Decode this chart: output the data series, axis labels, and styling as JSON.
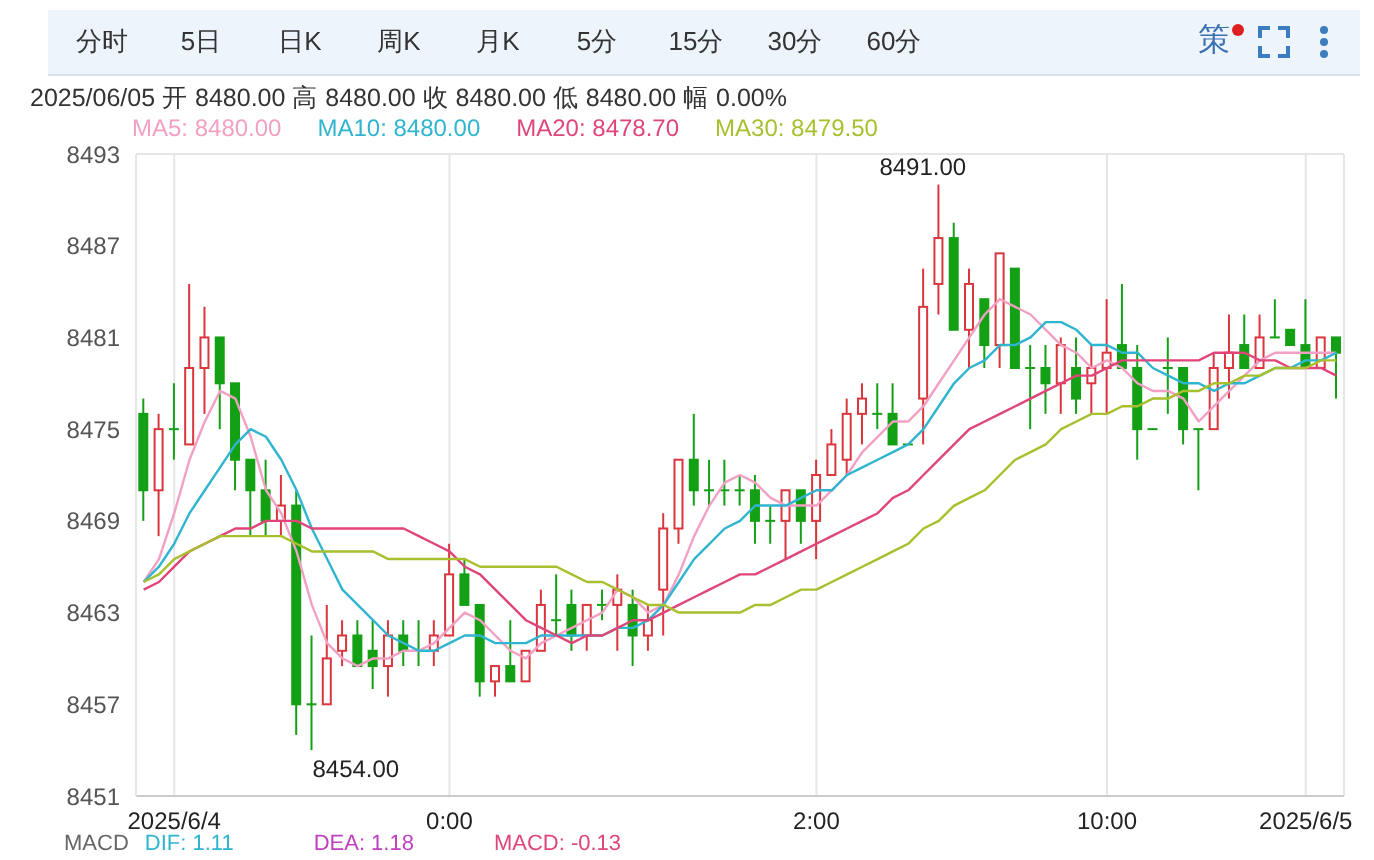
{
  "chart_data": {
    "type": "candlestick",
    "subtitle": "2025/06/05 开 8480.00 高 8480.00 收 8480.00 低 8480.00 幅 0.00%",
    "categories": [
      null,
      null,
      "2025/6/4",
      null,
      null,
      null,
      null,
      null,
      null,
      null,
      null,
      null,
      null,
      null,
      null,
      null,
      null,
      null,
      null,
      null,
      "0:00",
      null,
      null,
      null,
      null,
      null,
      null,
      null,
      null,
      null,
      null,
      null,
      null,
      null,
      null,
      null,
      null,
      null,
      null,
      null,
      null,
      null,
      null,
      null,
      "2:00",
      null,
      null,
      null,
      null,
      null,
      null,
      null,
      null,
      null,
      null,
      null,
      null,
      null,
      null,
      null,
      null,
      null,
      null,
      "10:00",
      null,
      null,
      null,
      null,
      null,
      null,
      null,
      null,
      null,
      null,
      null,
      null,
      "2025/6/5",
      null,
      null
    ],
    "ohlc": [
      [
        8476,
        8477,
        8469,
        8471
      ],
      [
        8471,
        8476,
        8468,
        8475
      ],
      [
        8475,
        8478,
        8473,
        8475
      ],
      [
        8474,
        8484.5,
        8474,
        8479
      ],
      [
        8479,
        8483,
        8476,
        8481
      ],
      [
        8481,
        8481,
        8475,
        8478
      ],
      [
        8478,
        8478,
        8471,
        8473
      ],
      [
        8473,
        8473,
        8468,
        8471
      ],
      [
        8471,
        8473,
        8468,
        8469
      ],
      [
        8469,
        8472,
        8468,
        8470
      ],
      [
        8470,
        8471,
        8455,
        8457
      ],
      [
        8457,
        8461.5,
        8454,
        8457
      ],
      [
        8457,
        8463.5,
        8457,
        8460
      ],
      [
        8460.5,
        8462.5,
        8459.5,
        8461.5
      ],
      [
        8461.5,
        8462.5,
        8459.5,
        8459.5
      ],
      [
        8460.5,
        8462.5,
        8458,
        8459.5
      ],
      [
        8459.5,
        8462.5,
        8457.5,
        8461.5
      ],
      [
        8461.5,
        8462.5,
        8459.5,
        8460.5
      ],
      [
        8460.5,
        8462.5,
        8459.5,
        8460.5
      ],
      [
        8460.5,
        8462.5,
        8459.5,
        8461.5
      ],
      [
        8461.5,
        8467.5,
        8461.5,
        8465.5
      ],
      [
        8465.5,
        8466.5,
        8463.5,
        8463.5
      ],
      [
        8463.5,
        8463.5,
        8457.5,
        8458.5
      ],
      [
        8458.5,
        8459.5,
        8457.5,
        8459.5
      ],
      [
        8459.5,
        8462.5,
        8458.5,
        8458.5
      ],
      [
        8458.5,
        8460.5,
        8458.5,
        8460.5
      ],
      [
        8460.5,
        8464.5,
        8460.5,
        8463.5
      ],
      [
        8462.5,
        8465.5,
        8461.5,
        8462.5
      ],
      [
        8463.5,
        8464.5,
        8460.5,
        8461.5
      ],
      [
        8461.5,
        8463.5,
        8460.5,
        8463.5
      ],
      [
        8463.5,
        8464.5,
        8462.5,
        8463.5
      ],
      [
        8463.5,
        8465.5,
        8460.5,
        8464.5
      ],
      [
        8463.5,
        8464.5,
        8459.5,
        8461.5
      ],
      [
        8461.5,
        8463.5,
        8460.5,
        8462.5
      ],
      [
        8464.5,
        8469.5,
        8461.5,
        8468.5
      ],
      [
        8468.5,
        8473,
        8467.5,
        8473
      ],
      [
        8473,
        8476,
        8470,
        8471
      ],
      [
        8471,
        8473,
        8470,
        8471
      ],
      [
        8471,
        8473,
        8470,
        8471
      ],
      [
        8471,
        8472,
        8470,
        8471
      ],
      [
        8471,
        8472,
        8467.5,
        8469
      ],
      [
        8469,
        8470,
        8467.5,
        8469
      ],
      [
        8469,
        8471,
        8466.5,
        8471
      ],
      [
        8471,
        8471,
        8467.5,
        8469
      ],
      [
        8469,
        8473,
        8466.5,
        8472
      ],
      [
        8472,
        8475,
        8472,
        8474
      ],
      [
        8473,
        8477,
        8472,
        8476
      ],
      [
        8476,
        8478,
        8474,
        8477
      ],
      [
        8476,
        8478,
        8475,
        8476
      ],
      [
        8476,
        8478,
        8474,
        8474
      ],
      [
        8474,
        8474,
        8474,
        8474
      ],
      [
        8477,
        8485.5,
        8474,
        8483
      ],
      [
        8484.5,
        8491,
        8482.5,
        8487.5
      ],
      [
        8487.5,
        8488.5,
        8481.5,
        8481.5
      ],
      [
        8481.5,
        8485.5,
        8479,
        8484.5
      ],
      [
        8483.5,
        8483.5,
        8479,
        8480.5
      ],
      [
        8480.5,
        8486.5,
        8479,
        8486.5
      ],
      [
        8485.5,
        8485.5,
        8479,
        8479
      ],
      [
        8479,
        8480.5,
        8475,
        8479
      ],
      [
        8479,
        8480.5,
        8476,
        8478
      ],
      [
        8478,
        8481,
        8476,
        8480.5
      ],
      [
        8479,
        8481,
        8476,
        8477
      ],
      [
        8478,
        8480.5,
        8476,
        8479
      ],
      [
        8479,
        8483.5,
        8476,
        8480
      ],
      [
        8480.5,
        8484.5,
        8479,
        8479
      ],
      [
        8479,
        8480.5,
        8473,
        8475
      ],
      [
        8475,
        8475,
        8475,
        8475
      ],
      [
        8479,
        8481,
        8476,
        8479
      ],
      [
        8479,
        8479,
        8474,
        8475
      ],
      [
        8475,
        8475,
        8471,
        8475
      ],
      [
        8475,
        8480,
        8475,
        8479
      ],
      [
        8479,
        8482.5,
        8477,
        8480
      ],
      [
        8480.5,
        8482.5,
        8479,
        8479
      ],
      [
        8479,
        8482.5,
        8479,
        8481
      ],
      [
        8481,
        8483.5,
        8481,
        8481
      ],
      [
        8481.5,
        8481.5,
        8480.5,
        8480.5
      ],
      [
        8480.5,
        8483.5,
        8479,
        8479
      ],
      [
        8479,
        8481,
        8479,
        8481
      ],
      [
        8481,
        8481,
        8477,
        8480
      ]
    ],
    "colors": [
      "#14a014",
      "#d9363e",
      "#14a014",
      "#d9363e",
      "#d9363e",
      "#14a014",
      "#14a014",
      "#14a014",
      "#14a014",
      "#d9363e",
      "#14a014",
      "#14a014",
      "#d9363e",
      "#d9363e",
      "#14a014",
      "#14a014",
      "#d9363e",
      "#14a014",
      "#14a014",
      "#d9363e",
      "#d9363e",
      "#14a014",
      "#14a014",
      "#d9363e",
      "#14a014",
      "#d9363e",
      "#d9363e",
      "#14a014",
      "#14a014",
      "#d9363e",
      "#14a014",
      "#d9363e",
      "#14a014",
      "#d9363e",
      "#d9363e",
      "#d9363e",
      "#14a014",
      "#14a014",
      "#14a014",
      "#14a014",
      "#14a014",
      "#14a014",
      "#d9363e",
      "#14a014",
      "#d9363e",
      "#d9363e",
      "#d9363e",
      "#d9363e",
      "#14a014",
      "#14a014",
      "#14a014",
      "#d9363e",
      "#d9363e",
      "#14a014",
      "#d9363e",
      "#14a014",
      "#d9363e",
      "#14a014",
      "#14a014",
      "#14a014",
      "#d9363e",
      "#14a014",
      "#d9363e",
      "#d9363e",
      "#14a014",
      "#14a014",
      "#14a014",
      "#14a014",
      "#14a014",
      "#14a014",
      "#d9363e",
      "#d9363e",
      "#14a014",
      "#d9363e",
      "#14a014",
      "#14a014",
      "#14a014",
      "#d9363e",
      "#14a014"
    ],
    "series": [
      {
        "type": "line",
        "name": "MA5: 8480.00",
        "color": "#f2a0c4",
        "values": [
          8465,
          8466.5,
          8469.5,
          8473,
          8475.5,
          8477.5,
          8477,
          8474.5,
          8471,
          8469.5,
          8467,
          8463.5,
          8461,
          8460,
          8459.5,
          8460,
          8460,
          8460.5,
          8460.5,
          8461,
          8462,
          8463,
          8462.5,
          8461.5,
          8460.5,
          8460,
          8461,
          8461.5,
          8462,
          8462.5,
          8463,
          8464.5,
          8464,
          8463,
          8463.5,
          8465.5,
          8468,
          8470,
          8471.5,
          8472,
          8471.5,
          8470.5,
          8470,
          8470,
          8470,
          8471,
          8472,
          8473.5,
          8474.5,
          8475.5,
          8475.5,
          8476.5,
          8478,
          8479.5,
          8481,
          8482.5,
          8483.5,
          8483,
          8482.5,
          8481.5,
          8480.5,
          8480,
          8479,
          8479.5,
          8479,
          8478,
          8477.5,
          8477.5,
          8477,
          8475.5,
          8476.5,
          8477.5,
          8478.5,
          8479.5,
          8480,
          8480,
          8480,
          8480,
          8480
        ]
      },
      {
        "type": "line",
        "name": "MA10: 8480.00",
        "color": "#2fb5cf",
        "values": [
          8465,
          8466,
          8467.5,
          8469.5,
          8471,
          8472.5,
          8474,
          8475,
          8474.5,
          8473,
          8471,
          8468.5,
          8466.5,
          8464.5,
          8463.5,
          8462.5,
          8461.5,
          8461,
          8460.5,
          8460.5,
          8461,
          8461.5,
          8461.5,
          8461,
          8461,
          8461,
          8461.5,
          8461.5,
          8461.5,
          8461.5,
          8461.5,
          8462,
          8462,
          8462.5,
          8463.5,
          8465,
          8466.5,
          8467.5,
          8468.5,
          8469,
          8470,
          8470,
          8470,
          8470.5,
          8471,
          8471,
          8472,
          8472.5,
          8473,
          8473.5,
          8474,
          8475,
          8476.5,
          8478,
          8479,
          8479.5,
          8480.5,
          8480.5,
          8481,
          8482,
          8482,
          8481.5,
          8480.5,
          8480.5,
          8480,
          8480,
          8479,
          8478.5,
          8478,
          8478,
          8477.5,
          8478,
          8478,
          8478.5,
          8479,
          8479,
          8479.5,
          8479.5,
          8480
        ]
      },
      {
        "type": "line",
        "name": "MA20: 8478.70",
        "color": "#e0457a",
        "values": [
          8464.5,
          8465,
          8466,
          8467,
          8467.5,
          8468,
          8468.5,
          8468.5,
          8469,
          8469,
          8469,
          8468.5,
          8468.5,
          8468.5,
          8468.5,
          8468.5,
          8468.5,
          8468.5,
          8468,
          8467.5,
          8467,
          8466,
          8465.5,
          8464.5,
          8463.5,
          8462.5,
          8462,
          8461.5,
          8461,
          8461.5,
          8461.5,
          8462,
          8462.5,
          8462.5,
          8463,
          8463.5,
          8464,
          8464.5,
          8465,
          8465.5,
          8465.5,
          8466,
          8466.5,
          8467,
          8467.5,
          8468,
          8468.5,
          8469,
          8469.5,
          8470.5,
          8471,
          8472,
          8473,
          8474,
          8475,
          8475.5,
          8476,
          8476.5,
          8477,
          8477.5,
          8478,
          8478.5,
          8478.5,
          8479,
          8479.5,
          8479.5,
          8479.5,
          8479.5,
          8479.5,
          8479.5,
          8480,
          8480,
          8480,
          8479.5,
          8479.5,
          8479,
          8479,
          8479,
          8478.5
        ]
      },
      {
        "type": "line",
        "name": "MA30: 8479.50",
        "color": "#a8bf2e",
        "values": [
          8465,
          8465.5,
          8466.5,
          8467,
          8467.5,
          8468,
          8468,
          8468,
          8468,
          8468,
          8467.5,
          8467,
          8467,
          8467,
          8467,
          8467,
          8466.5,
          8466.5,
          8466.5,
          8466.5,
          8466.5,
          8466.5,
          8466,
          8466,
          8466,
          8466,
          8466,
          8466,
          8465.5,
          8465,
          8465,
          8464.5,
          8464,
          8463.5,
          8463.5,
          8463,
          8463,
          8463,
          8463,
          8463,
          8463.5,
          8463.5,
          8464,
          8464.5,
          8464.5,
          8465,
          8465.5,
          8466,
          8466.5,
          8467,
          8467.5,
          8468.5,
          8469,
          8470,
          8470.5,
          8471,
          8472,
          8473,
          8473.5,
          8474,
          8475,
          8475.5,
          8476,
          8476,
          8476.5,
          8476.5,
          8477,
          8477,
          8477.5,
          8477.5,
          8478,
          8478,
          8478.5,
          8478.5,
          8479,
          8479,
          8479,
          8479.5,
          8479.5
        ]
      }
    ],
    "ylim": [
      8451,
      8493
    ],
    "yticks": [
      8451,
      8457,
      8463,
      8469,
      8475,
      8481,
      8487,
      8493
    ],
    "grid": true,
    "legend": "top left",
    "marker": "none",
    "line_style": "solid",
    "annotations": [
      "分时",
      "5日",
      "日K",
      "周K",
      "月K",
      "5分",
      "15分",
      "30分",
      "60分",
      "策",
      "8491.00",
      "8454.00",
      "MACD",
      "DIF: 1.11",
      "DEA: 1.18",
      "MACD: -0.13"
    ]
  }
}
